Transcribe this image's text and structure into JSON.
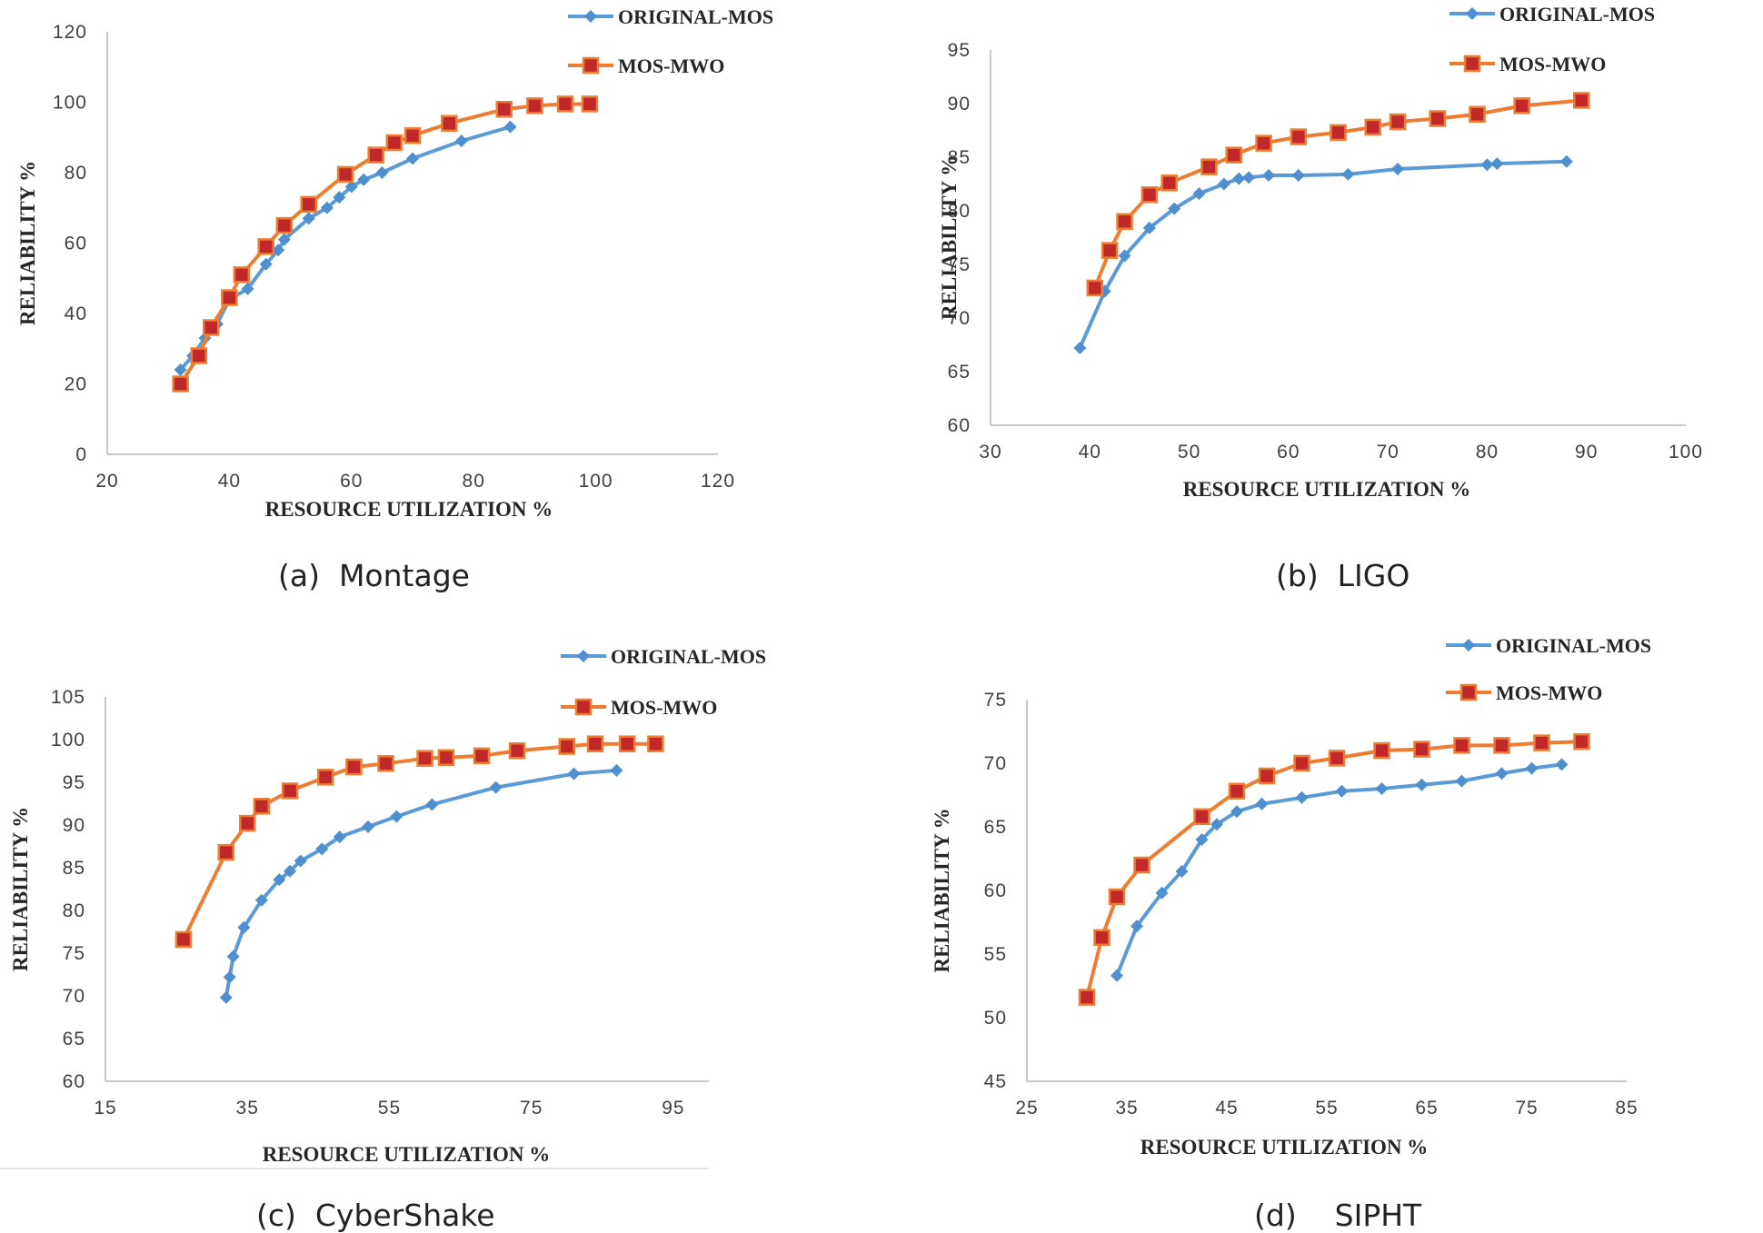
{
  "chart_data": [
    {
      "type": "line",
      "caption": "(a)  Montage",
      "xlabel": "RESOURCE UTILIZATION %",
      "ylabel": "RELIABILITY %",
      "xlim": [
        20,
        120
      ],
      "ylim": [
        0,
        120
      ],
      "xticks": [
        "20",
        "40",
        "60",
        "80",
        "100",
        "120"
      ],
      "yticks": [
        "0",
        "20",
        "40",
        "60",
        "80",
        "100",
        "120"
      ],
      "series": [
        {
          "name": "ORIGINAL-MOS",
          "color": "#5b9bd5",
          "marker": "diamond",
          "x": [
            32,
            34,
            36,
            38,
            40,
            43,
            46,
            48,
            49,
            53,
            56,
            58,
            60,
            62,
            65,
            70,
            78,
            86
          ],
          "y": [
            24,
            28,
            33,
            37,
            44,
            47,
            54,
            58,
            61,
            67,
            70,
            73,
            76,
            78,
            80,
            84,
            89,
            93
          ]
        },
        {
          "name": "MOS-MWO",
          "color": "#ed7d31",
          "marker": "square",
          "x": [
            32,
            35,
            37,
            40,
            42,
            46,
            49,
            53,
            59,
            64,
            67,
            70,
            76,
            85,
            90,
            95,
            99
          ],
          "y": [
            20,
            28,
            36,
            44.5,
            51,
            59,
            65,
            71,
            79.5,
            85,
            88.5,
            90.5,
            94,
            98,
            99,
            99.5,
            99.5
          ]
        }
      ]
    },
    {
      "type": "line",
      "caption": "(b)  LIGO",
      "xlabel": "RESOURCE UTILIZATION %",
      "ylabel": "RELIABILITY %",
      "xlim": [
        30,
        100
      ],
      "ylim": [
        60,
        95
      ],
      "xticks": [
        "30",
        "40",
        "50",
        "60",
        "70",
        "80",
        "90",
        "100"
      ],
      "yticks": [
        "60",
        "65",
        "70",
        "75",
        "80",
        "85",
        "90",
        "95"
      ],
      "series": [
        {
          "name": "ORIGINAL-MOS",
          "color": "#5b9bd5",
          "marker": "diamond",
          "x": [
            39,
            41.5,
            43.5,
            46,
            48.5,
            51,
            53.5,
            55,
            56,
            58,
            61,
            66,
            71,
            80,
            81,
            88
          ],
          "y": [
            67.2,
            72.5,
            75.8,
            78.4,
            80.2,
            81.6,
            82.5,
            83.0,
            83.1,
            83.3,
            83.3,
            83.4,
            83.9,
            84.3,
            84.4,
            84.6
          ]
        },
        {
          "name": "MOS-MWO",
          "color": "#ed7d31",
          "marker": "square",
          "x": [
            40.5,
            42,
            43.5,
            46,
            48,
            52,
            54.5,
            57.5,
            61,
            65,
            68.5,
            71,
            75,
            79,
            83.5,
            89.5
          ],
          "y": [
            72.8,
            76.3,
            79.0,
            81.5,
            82.6,
            84.1,
            85.2,
            86.3,
            86.9,
            87.3,
            87.8,
            88.3,
            88.6,
            89.0,
            89.8,
            90.3
          ]
        }
      ]
    },
    {
      "type": "line",
      "caption": "(c)  CyberShake",
      "xlabel": "RESOURCE UTILIZATION %",
      "ylabel": "RELIABILITY %",
      "xlim": [
        15,
        100
      ],
      "ylim": [
        60,
        105
      ],
      "xticks": [
        "15",
        "35",
        "55",
        "75",
        "95"
      ],
      "yticks": [
        "60",
        "65",
        "70",
        "75",
        "80",
        "85",
        "90",
        "95",
        "100",
        "105"
      ],
      "series": [
        {
          "name": "ORIGINAL-MOS",
          "color": "#5b9bd5",
          "marker": "diamond",
          "x": [
            32,
            32.5,
            33,
            34.5,
            37,
            39.5,
            41,
            42.5,
            45.5,
            48,
            52,
            56,
            61,
            70,
            81,
            87
          ],
          "y": [
            69.8,
            72.2,
            74.6,
            78.0,
            81.2,
            83.6,
            84.6,
            85.8,
            87.2,
            88.6,
            89.8,
            91.0,
            92.4,
            94.4,
            96.0,
            96.4
          ]
        },
        {
          "name": "MOS-MWO",
          "color": "#ed7d31",
          "marker": "square",
          "x": [
            26,
            32,
            35,
            37,
            41,
            46,
            50,
            54.5,
            60,
            63,
            68,
            73,
            80,
            84,
            88.5,
            92.5
          ],
          "y": [
            76.6,
            86.8,
            90.2,
            92.2,
            94.0,
            95.6,
            96.8,
            97.2,
            97.8,
            97.9,
            98.1,
            98.7,
            99.2,
            99.5,
            99.5,
            99.5
          ]
        }
      ]
    },
    {
      "type": "line",
      "caption": "(d)    SIPHT",
      "xlabel": "RESOURCE UTILIZATION %",
      "ylabel": "RELIABILITY %",
      "xlim": [
        25,
        85
      ],
      "ylim": [
        45,
        75
      ],
      "xticks": [
        "25",
        "35",
        "45",
        "55",
        "65",
        "75",
        "85"
      ],
      "yticks": [
        "45",
        "50",
        "55",
        "60",
        "65",
        "70",
        "75"
      ],
      "series": [
        {
          "name": "ORIGINAL-MOS",
          "color": "#5b9bd5",
          "marker": "diamond",
          "x": [
            34,
            36,
            38.5,
            40.5,
            42.5,
            44,
            46,
            48.5,
            52.5,
            56.5,
            60.5,
            64.5,
            68.5,
            72.5,
            75.5,
            78.5
          ],
          "y": [
            53.3,
            57.2,
            59.8,
            61.5,
            64.0,
            65.2,
            66.2,
            66.8,
            67.3,
            67.8,
            68.0,
            68.3,
            68.6,
            69.2,
            69.6,
            69.9
          ]
        },
        {
          "name": "MOS-MWO",
          "color": "#ed7d31",
          "marker": "square",
          "x": [
            31,
            32.5,
            34,
            36.5,
            42.5,
            46,
            49,
            52.5,
            56,
            60.5,
            64.5,
            68.5,
            72.5,
            76.5,
            80.5
          ],
          "y": [
            51.6,
            56.3,
            59.5,
            62.0,
            65.8,
            67.8,
            69.0,
            70.0,
            70.4,
            71.0,
            71.1,
            71.4,
            71.4,
            71.6,
            71.7
          ]
        }
      ]
    }
  ]
}
